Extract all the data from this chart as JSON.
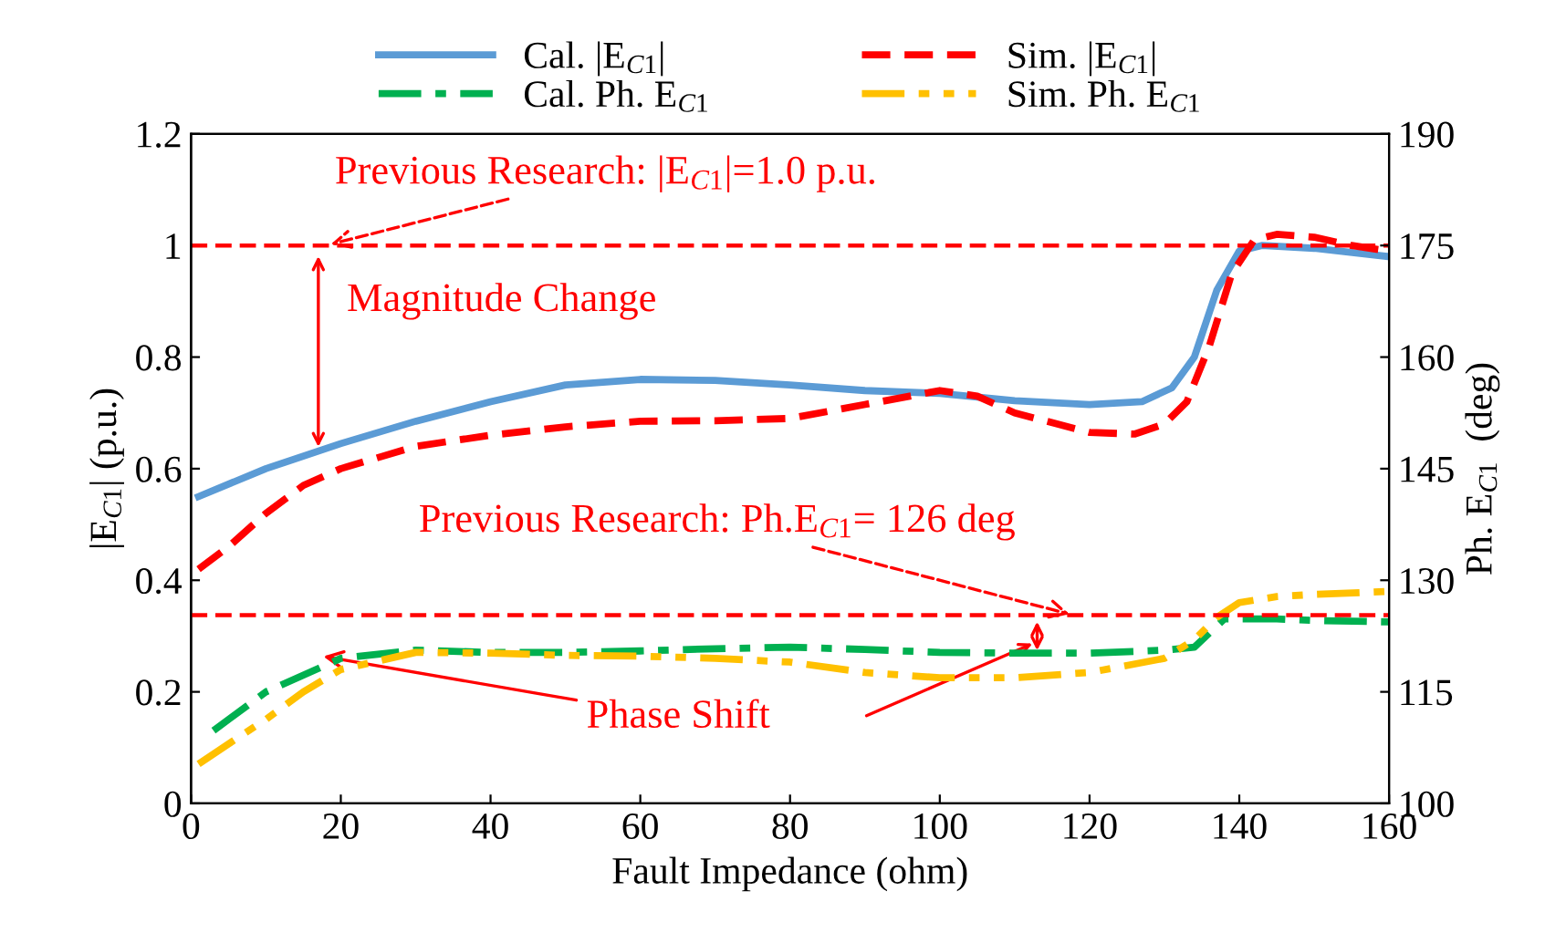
{
  "chart_data": {
    "type": "line",
    "xlabel": "Fault Impedance (ohm)",
    "ylabel": "|E$_{C1}$| (p.u.)",
    "y2label": "Ph. E$_{C1}$  (deg)",
    "xlim": [
      0,
      160
    ],
    "xticks": [
      0,
      20,
      40,
      60,
      80,
      100,
      120,
      140,
      160
    ],
    "ylim": [
      0,
      1.2
    ],
    "yticks": [
      0,
      0.2,
      0.4,
      0.6,
      0.8,
      1,
      1.2
    ],
    "y2lim": [
      100,
      190
    ],
    "y2ticks": [
      100,
      115,
      130,
      145,
      160,
      175,
      190
    ],
    "grid": false,
    "legend": "top",
    "marker": "none",
    "series": [
      {
        "name": "Cal. |E$_{C1}$|",
        "color": "#5b9bd5",
        "line_style": "solid",
        "x": [
          1,
          10,
          20,
          30,
          40,
          50,
          60,
          70,
          80,
          90,
          100,
          110,
          120,
          127,
          131,
          134,
          137,
          140,
          143,
          150,
          160
        ],
        "values": [
          0.55,
          0.6,
          0.645,
          0.685,
          0.72,
          0.75,
          0.76,
          0.758,
          0.75,
          0.74,
          0.735,
          0.722,
          0.715,
          0.72,
          0.745,
          0.8,
          0.92,
          0.99,
          1.0,
          0.995,
          0.98
        ]
      },
      {
        "name": "Sim. |E$_{C1}$|",
        "color": "#ff0000",
        "line_style": "dashed",
        "x": [
          1,
          5,
          10,
          15,
          20,
          30,
          40,
          50,
          60,
          70,
          80,
          90,
          100,
          105,
          110,
          120,
          126,
          130,
          133,
          136,
          139,
          142,
          145,
          150,
          155,
          160
        ],
        "values": [
          0.42,
          0.46,
          0.52,
          0.57,
          0.6,
          0.64,
          0.66,
          0.675,
          0.685,
          0.686,
          0.69,
          0.715,
          0.74,
          0.73,
          0.7,
          0.665,
          0.662,
          0.68,
          0.72,
          0.82,
          0.95,
          1.01,
          1.02,
          1.015,
          1.0,
          0.99
        ]
      },
      {
        "name": "Cal. Ph. E$_{C1}$",
        "color": "#00b050",
        "line_style": "dashdot",
        "axis": "y2",
        "x": [
          3,
          10,
          20,
          30,
          40,
          50,
          60,
          70,
          80,
          90,
          100,
          110,
          120,
          130,
          134,
          138,
          145,
          150,
          160
        ],
        "values": [
          109.8,
          115,
          119.5,
          120.6,
          120.3,
          120.3,
          120.5,
          120.8,
          121,
          120.7,
          120.3,
          120.2,
          120.2,
          120.6,
          121,
          124.8,
          124.8,
          124.6,
          124.4
        ]
      },
      {
        "name": "Sim. Ph. E$_{C1}$",
        "color": "#ffc000",
        "line_style": "dashdotdot",
        "axis": "y2",
        "x": [
          1,
          5,
          10,
          15,
          20,
          30,
          40,
          50,
          60,
          70,
          80,
          90,
          100,
          110,
          120,
          130,
          134,
          137,
          140,
          145,
          150,
          160
        ],
        "values": [
          105.3,
          108,
          111.3,
          115,
          118,
          120.3,
          120.2,
          119.9,
          119.8,
          119.5,
          119,
          117.6,
          116.9,
          116.9,
          117.6,
          119.5,
          122,
          125,
          127,
          127.8,
          128.1,
          128.5
        ]
      }
    ],
    "ref_lines": [
      {
        "axis": "y",
        "value": 1.0,
        "color": "#ff0000",
        "line_style": "dashed"
      },
      {
        "axis": "y2",
        "value": 125.3,
        "color": "#ff0000",
        "line_style": "dashed"
      }
    ],
    "annotations": [
      {
        "text": "Previous Research: |E$_{C1}$|=1.0 p.u.",
        "x": 18,
        "y": 1.0
      },
      {
        "text": "Magnitude Change",
        "x": 17,
        "y": 0.63
      },
      {
        "text": "Previous Research: Ph.E$_{C1}$= 126 deg",
        "x": 118,
        "y": 0.337
      },
      {
        "text": "Phase Shift",
        "x": 17,
        "y": 0.265
      }
    ]
  }
}
